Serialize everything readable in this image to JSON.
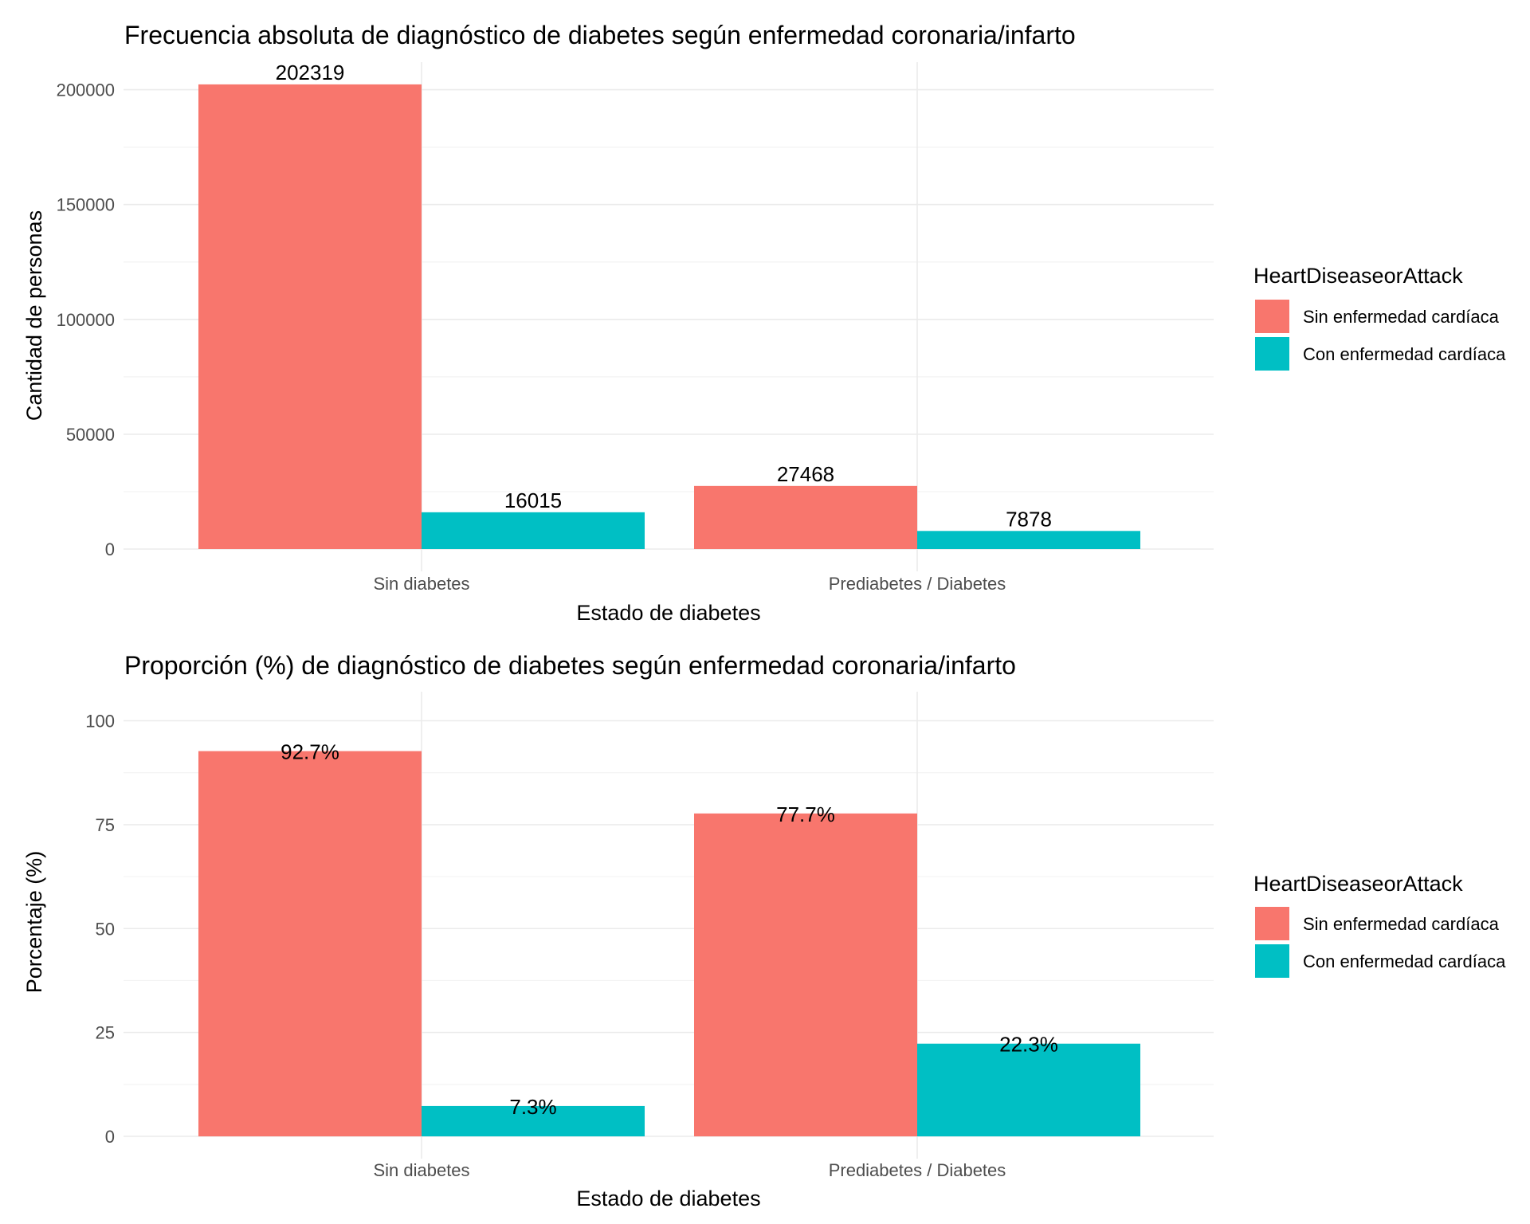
{
  "chart_data": [
    {
      "type": "bar",
      "title": "Frecuencia absoluta de diagnóstico de diabetes según enfermedad coronaria/infarto",
      "xlabel": "Estado de diabetes",
      "ylabel": "Cantidad de personas",
      "categories": [
        "Sin diabetes",
        "Prediabetes / Diabetes"
      ],
      "series": [
        {
          "name": "Sin enfermedad cardíaca",
          "color": "#F8766D",
          "values": [
            202319,
            27468
          ],
          "labels": [
            "202319",
            "27468"
          ]
        },
        {
          "name": "Con enfermedad cardíaca",
          "color": "#00BFC4",
          "values": [
            16015,
            7878
          ],
          "labels": [
            "16015",
            "7878"
          ]
        }
      ],
      "ylim": [
        0,
        212000
      ],
      "yticks": [
        0,
        50000,
        100000,
        150000,
        200000
      ],
      "ytick_labels": [
        "0",
        "50000",
        "100000",
        "150000",
        "200000"
      ],
      "legend_title": "HeartDiseaseorAttack",
      "legend_position": "right",
      "grid": true
    },
    {
      "type": "bar",
      "title": "Proporción (%) de diagnóstico de diabetes según enfermedad coronaria/infarto",
      "xlabel": "Estado de diabetes",
      "ylabel": "Porcentaje (%)",
      "categories": [
        "Sin diabetes",
        "Prediabetes / Diabetes"
      ],
      "series": [
        {
          "name": "Sin enfermedad cardíaca",
          "color": "#F8766D",
          "values": [
            92.7,
            77.7
          ],
          "labels": [
            "92.7%",
            "77.7%"
          ]
        },
        {
          "name": "Con enfermedad cardíaca",
          "color": "#00BFC4",
          "values": [
            7.3,
            22.3
          ],
          "labels": [
            "7.3%",
            "22.3%"
          ]
        }
      ],
      "ylim": [
        0,
        107
      ],
      "yticks": [
        0,
        25,
        50,
        75,
        100
      ],
      "ytick_labels": [
        "0",
        "25",
        "50",
        "75",
        "100"
      ],
      "legend_title": "HeartDiseaseorAttack",
      "legend_position": "right",
      "grid": true
    }
  ]
}
